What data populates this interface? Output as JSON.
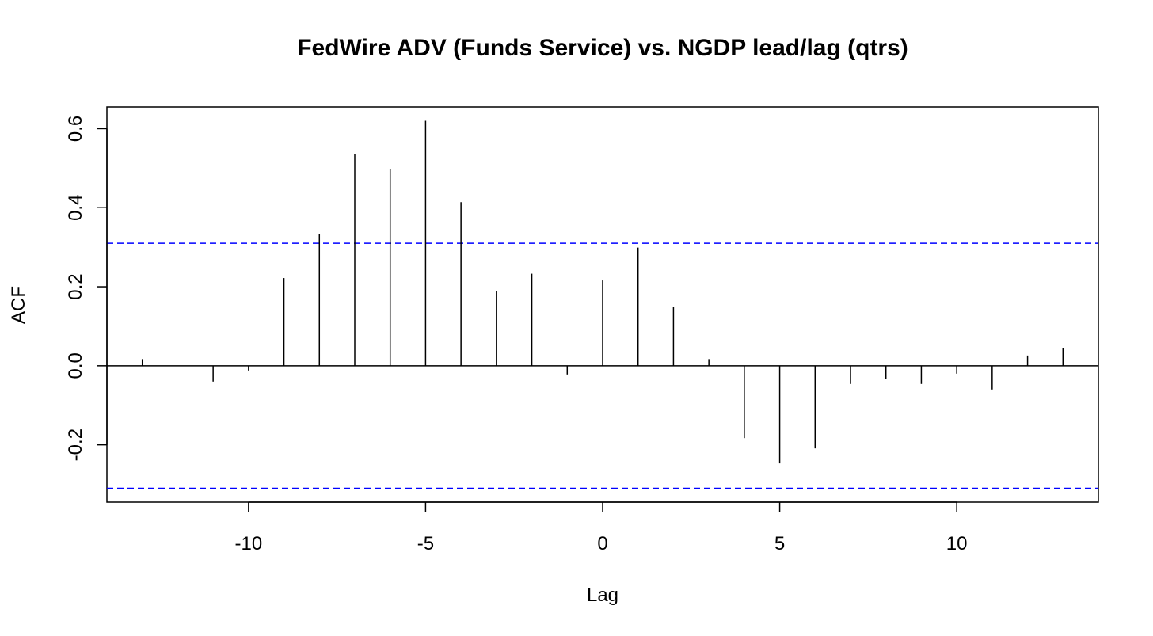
{
  "chart_data": {
    "type": "bar",
    "title": "FedWire ADV (Funds Service) vs. NGDP lead/lag (qtrs)",
    "xlabel": "Lag",
    "ylabel": "ACF",
    "xlim": [
      -14,
      14
    ],
    "ylim": [
      -0.345,
      0.655
    ],
    "x_ticks": [
      -10,
      -5,
      0,
      5,
      10
    ],
    "x_tick_labels": [
      "-10",
      "-5",
      "0",
      "5",
      "10"
    ],
    "y_ticks": [
      -0.2,
      0.0,
      0.2,
      0.4,
      0.6
    ],
    "y_tick_labels": [
      "-0.2",
      "0.0",
      "0.2",
      "0.4",
      "0.6"
    ],
    "lags": [
      -13,
      -12,
      -11,
      -10,
      -9,
      -8,
      -7,
      -6,
      -5,
      -4,
      -3,
      -2,
      -1,
      0,
      1,
      2,
      3,
      4,
      5,
      6,
      7,
      8,
      9,
      10,
      11,
      12,
      13
    ],
    "acf": [
      0.017,
      0.0,
      -0.04,
      -0.012,
      0.222,
      0.333,
      0.535,
      0.497,
      0.62,
      0.414,
      0.19,
      0.233,
      -0.022,
      0.216,
      0.299,
      0.15,
      0.017,
      -0.183,
      -0.247,
      -0.209,
      -0.046,
      -0.034,
      -0.046,
      -0.02,
      -0.06,
      0.026,
      0.045
    ],
    "confidence_bound": 0.31,
    "colors": {
      "bars": "#000000",
      "confidence": "#0000ff",
      "frame": "#000000"
    }
  }
}
